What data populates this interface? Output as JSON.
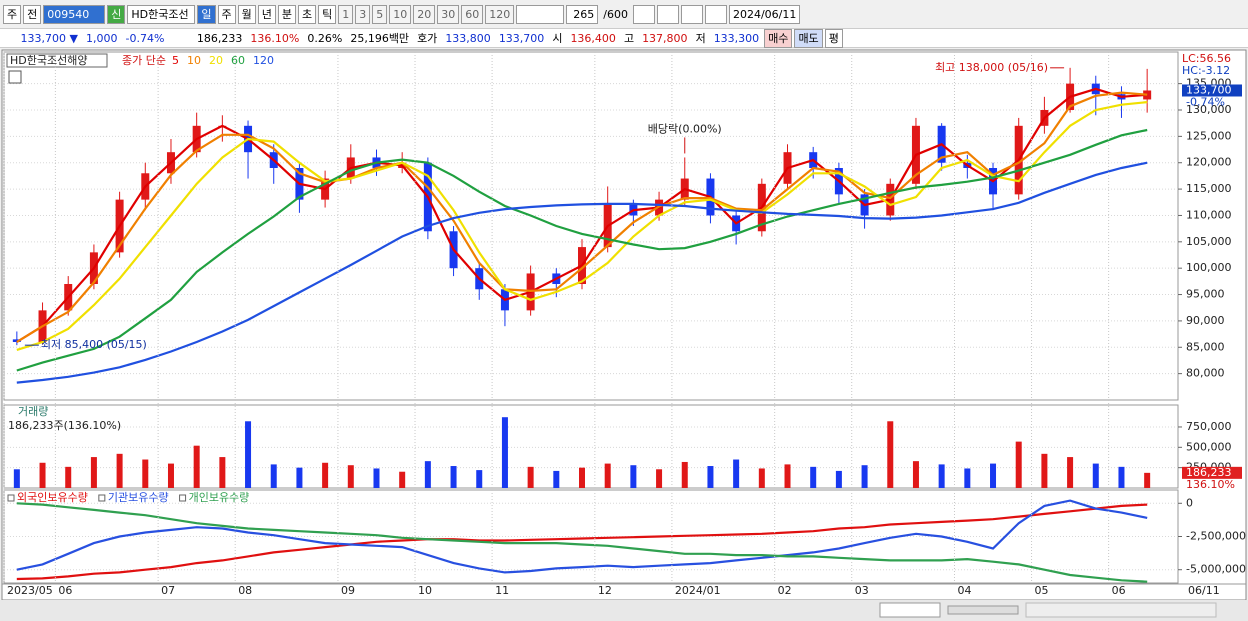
{
  "toolbar": {
    "period_unit": "주",
    "prev": "전",
    "code": "009540",
    "new": "신",
    "name": "HD한국조선",
    "periods": [
      "일",
      "주",
      "월",
      "년",
      "분",
      "초",
      "틱"
    ],
    "minutes": [
      "1",
      "3",
      "5",
      "10",
      "20",
      "30",
      "60",
      "120"
    ],
    "count": "265",
    "max": "/600",
    "date": "2024/06/11"
  },
  "info": {
    "price": "133,700 ▼",
    "change": "1,000",
    "rate": "-0.74%",
    "volume": "186,233",
    "volume_ratio": "136.10%",
    "turnover": "0.26%",
    "amount": "25,196백만",
    "bid_label": "호가",
    "ask": "133,800",
    "bid": "133,700",
    "open_label": "시",
    "open": "136,400",
    "high_label": "고",
    "high": "137,800",
    "low_label": "저",
    "low": "133,300",
    "buy": "매수",
    "sell": "매도",
    "avg": "평"
  },
  "chart_data": [
    {
      "type": "candlestick",
      "title": "HD한국조선해양",
      "ma_label": "종가 단순",
      "up_color": "#e01818",
      "down_color": "#1838f0",
      "open": [
        86500,
        86000,
        92000,
        97000,
        103000,
        113000,
        118000,
        122000,
        127000,
        127000,
        122000,
        119000,
        113000,
        117000,
        121000,
        119000,
        120000,
        107000,
        100000,
        96000,
        92000,
        99000,
        97000,
        104000,
        112000,
        110000,
        113000,
        117000,
        110000,
        107000,
        116000,
        122000,
        119000,
        114000,
        110000,
        116000,
        127000,
        120000,
        119000,
        114000,
        127000,
        130000,
        135000,
        133000,
        132000
      ],
      "high": [
        88000,
        93500,
        98500,
        104500,
        114500,
        120000,
        124500,
        129500,
        129000,
        128000,
        123500,
        120000,
        118500,
        123500,
        122500,
        122000,
        121000,
        108000,
        101000,
        97000,
        100500,
        100000,
        105500,
        115500,
        113000,
        114500,
        121000,
        118000,
        111000,
        117000,
        123500,
        123000,
        120000,
        115000,
        117000,
        128500,
        127500,
        121500,
        120000,
        128500,
        132500,
        138000,
        136500,
        134500,
        137800
      ],
      "low": [
        85400,
        85500,
        91000,
        96000,
        102000,
        111000,
        116000,
        121000,
        124000,
        117000,
        116000,
        110500,
        111500,
        116000,
        117500,
        118000,
        105500,
        98500,
        94000,
        89000,
        91000,
        94500,
        96000,
        103000,
        108000,
        109000,
        112000,
        108500,
        104500,
        106000,
        115000,
        117000,
        112000,
        107500,
        109000,
        115000,
        118500,
        117000,
        111000,
        113000,
        125500,
        129500,
        129000,
        128500,
        129500
      ],
      "close": [
        86000,
        92000,
        97000,
        103000,
        113000,
        118000,
        122000,
        127000,
        127000,
        122000,
        119000,
        113000,
        117000,
        121000,
        119000,
        120000,
        107000,
        100000,
        96000,
        92000,
        99000,
        97000,
        104000,
        112000,
        110000,
        113000,
        117000,
        110000,
        107000,
        116000,
        122000,
        119000,
        114000,
        110000,
        116000,
        127000,
        120000,
        119000,
        114000,
        127000,
        130000,
        135000,
        133000,
        132000,
        133700
      ],
      "series": [
        {
          "name": "5",
          "color": "#e00000",
          "values": [
            86000,
            89000,
            94500,
            100000,
            108000,
            115500,
            120000,
            124500,
            127000,
            124500,
            120500,
            116000,
            115000,
            119000,
            120000,
            119500,
            113500,
            103500,
            98000,
            94000,
            95500,
            98000,
            100500,
            108000,
            111000,
            111500,
            115000,
            113500,
            108500,
            111500,
            119000,
            120500,
            116500,
            112000,
            113000,
            121500,
            123500,
            119500,
            116500,
            120500,
            128500,
            132500,
            134000,
            132500,
            132900
          ]
        },
        {
          "name": "10",
          "color": "#f08000",
          "values": [
            86000,
            89000,
            91700,
            97300,
            104300,
            111300,
            117700,
            122300,
            125300,
            125300,
            122700,
            118000,
            116300,
            117000,
            119000,
            120000,
            115300,
            109000,
            101000,
            96000,
            95700,
            96000,
            100000,
            104300,
            108700,
            111700,
            113300,
            113300,
            111300,
            111000,
            115000,
            119000,
            118300,
            114300,
            113300,
            117700,
            121000,
            122000,
            117700,
            120000,
            123700,
            130700,
            132700,
            133300,
            132900
          ]
        },
        {
          "name": "20",
          "color": "#f0e000",
          "values": [
            84500,
            86000,
            88500,
            93000,
            98000,
            104000,
            110000,
            116000,
            121000,
            124500,
            124000,
            120000,
            116500,
            117000,
            118500,
            120000,
            117500,
            111000,
            103000,
            96000,
            94000,
            95500,
            97500,
            101000,
            106000,
            110000,
            112500,
            113000,
            111000,
            110500,
            114000,
            118000,
            118000,
            115500,
            112000,
            113500,
            119000,
            120500,
            117500,
            116500,
            122000,
            127000,
            130000,
            131000,
            131500
          ]
        },
        {
          "name": "60",
          "color": "#20a040",
          "values": [
            80600,
            82100,
            83400,
            84700,
            87000,
            90500,
            94000,
            99300,
            103000,
            106500,
            109800,
            113500,
            116000,
            118500,
            120000,
            120600,
            120000,
            117500,
            114500,
            111800,
            110000,
            108000,
            106500,
            105500,
            104500,
            103600,
            103800,
            105000,
            106500,
            108300,
            109800,
            111000,
            112200,
            113200,
            114300,
            115300,
            115800,
            116400,
            117200,
            118500,
            120000,
            121500,
            123400,
            125200,
            126200
          ]
        },
        {
          "name": "120",
          "color": "#2050e0",
          "values": [
            78300,
            78800,
            79400,
            80200,
            81200,
            82600,
            84200,
            86000,
            88000,
            90200,
            92800,
            95400,
            98000,
            100600,
            103300,
            106000,
            108000,
            109500,
            110500,
            111200,
            111600,
            111900,
            112100,
            112200,
            112200,
            112000,
            111800,
            111300,
            110900,
            110600,
            110300,
            110100,
            109900,
            109500,
            109400,
            109600,
            110000,
            110600,
            111200,
            112400,
            114300,
            116000,
            117700,
            119000,
            120000
          ]
        }
      ],
      "ylim": [
        75000,
        141000
      ],
      "yticks": [
        {
          "value": 80000,
          "label": "80,000"
        },
        {
          "value": 85000,
          "label": "85,000"
        },
        {
          "value": 90000,
          "label": "90,000"
        },
        {
          "value": 95000,
          "label": "95,000"
        },
        {
          "value": 100000,
          "label": "100,000"
        },
        {
          "value": 105000,
          "label": "105,000"
        },
        {
          "value": 110000,
          "label": "110,000"
        },
        {
          "value": 115000,
          "label": "115,000"
        },
        {
          "value": 120000,
          "label": "120,000"
        },
        {
          "value": 125000,
          "label": "125,000"
        },
        {
          "value": 130000,
          "label": "130,000"
        },
        {
          "value": 135000,
          "label": "135,000"
        }
      ],
      "annotations": [
        {
          "text": "최고 138,000 (05/16)",
          "index": 41,
          "anchor": "high",
          "color": "#d01010"
        },
        {
          "text": "최저 85,400 (05/15)",
          "index": 0,
          "anchor": "low",
          "color": "#1030a0"
        },
        {
          "text": "배당락(0.00%)",
          "index": 26,
          "anchor": "high",
          "color": "#202020"
        }
      ],
      "price_tag": {
        "value": 133700,
        "label": "133,700"
      },
      "change_label": "-0.74%",
      "lc_label": "LC:56.56",
      "hc_label": "HC:-3.12"
    },
    {
      "type": "bar",
      "title": "거래량",
      "subtitle": "186,233주(136.10%)",
      "tag_label": "186,233",
      "tag_ratio": "136.10%",
      "values": [
        230000,
        310000,
        260000,
        380000,
        420000,
        350000,
        300000,
        520000,
        380000,
        820000,
        290000,
        250000,
        310000,
        280000,
        240000,
        200000,
        330000,
        270000,
        220000,
        870000,
        260000,
        210000,
        250000,
        300000,
        280000,
        230000,
        320000,
        270000,
        350000,
        240000,
        290000,
        260000,
        210000,
        280000,
        820000,
        330000,
        290000,
        240000,
        300000,
        570000,
        420000,
        380000,
        300000,
        260000,
        186233
      ],
      "ylim": [
        0,
        1020000
      ],
      "yticks": [
        {
          "value": 250000,
          "label": "250,000"
        },
        {
          "value": 500000,
          "label": "500,000"
        },
        {
          "value": 750000,
          "label": "750,000"
        }
      ]
    },
    {
      "type": "line",
      "categories": [
        "2023/05",
        null,
        "06",
        null,
        null,
        null,
        "07",
        null,
        null,
        "08",
        null,
        null,
        null,
        "09",
        null,
        null,
        "10",
        null,
        null,
        "11",
        null,
        null,
        null,
        "12",
        null,
        null,
        "2024/01",
        null,
        null,
        null,
        "02",
        null,
        null,
        "03",
        null,
        null,
        null,
        "04",
        null,
        null,
        "05",
        null,
        null,
        "06",
        null
      ],
      "last_date": "06/11",
      "series": [
        {
          "name": "외국인보유수량",
          "color": "#e01010",
          "values": [
            -5700000,
            -5650000,
            -5500000,
            -5300000,
            -5200000,
            -5000000,
            -4800000,
            -4500000,
            -4300000,
            -4000000,
            -3700000,
            -3500000,
            -3300000,
            -3100000,
            -2900000,
            -2800000,
            -2700000,
            -2700000,
            -2800000,
            -2800000,
            -2750000,
            -2700000,
            -2650000,
            -2600000,
            -2550000,
            -2500000,
            -2450000,
            -2400000,
            -2350000,
            -2300000,
            -2200000,
            -2100000,
            -1900000,
            -1800000,
            -1600000,
            -1500000,
            -1400000,
            -1300000,
            -1200000,
            -1000000,
            -800000,
            -600000,
            -400000,
            -200000,
            -100000
          ]
        },
        {
          "name": "기관보유수량",
          "color": "#2850e0",
          "values": [
            -5000000,
            -4600000,
            -3800000,
            -3000000,
            -2500000,
            -2200000,
            -2000000,
            -1800000,
            -1900000,
            -2200000,
            -2400000,
            -2700000,
            -3000000,
            -3100000,
            -3200000,
            -3300000,
            -3900000,
            -4500000,
            -4900000,
            -5200000,
            -5100000,
            -4900000,
            -4800000,
            -4700000,
            -4800000,
            -4700000,
            -4600000,
            -4500000,
            -4300000,
            -4100000,
            -3900000,
            -3700000,
            -3400000,
            -3000000,
            -2600000,
            -2300000,
            -2500000,
            -2900000,
            -3400000,
            -1500000,
            -200000,
            200000,
            -400000,
            -700000,
            -1100000
          ]
        },
        {
          "name": "개인보유수량",
          "color": "#30a050",
          "values": [
            0,
            -100000,
            -300000,
            -500000,
            -700000,
            -900000,
            -1200000,
            -1500000,
            -1700000,
            -1900000,
            -2000000,
            -2100000,
            -2200000,
            -2300000,
            -2400000,
            -2600000,
            -2700000,
            -2800000,
            -2900000,
            -3000000,
            -3000000,
            -3000000,
            -3100000,
            -3200000,
            -3400000,
            -3600000,
            -3800000,
            -3800000,
            -3900000,
            -3900000,
            -4000000,
            -4000000,
            -4100000,
            -4200000,
            -4300000,
            -4300000,
            -4300000,
            -4200000,
            -4400000,
            -4600000,
            -5000000,
            -5400000,
            -5600000,
            -5800000,
            -5900000
          ]
        }
      ],
      "ylim": [
        -6000000,
        1000000
      ],
      "yticks": [
        0,
        {
          "value": -2500000,
          "label": "-2,500,000"
        },
        {
          "value": -5000000,
          "label": "-5,000,000"
        }
      ]
    }
  ]
}
